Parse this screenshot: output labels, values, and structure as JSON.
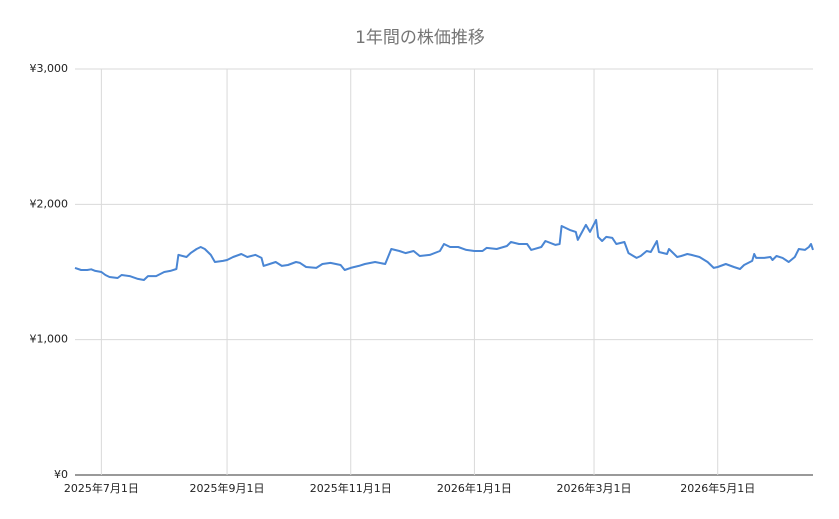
{
  "chart_data": {
    "type": "line",
    "title": "1年間の株価推移",
    "x": [
      "2025-06-18",
      "2025-06-21",
      "2025-06-24",
      "2025-06-26",
      "2025-06-28",
      "2025-07-01",
      "2025-07-03",
      "2025-07-05",
      "2025-07-09",
      "2025-07-11",
      "2025-07-15",
      "2025-07-19",
      "2025-07-22",
      "2025-07-24",
      "2025-07-28",
      "2025-08-01",
      "2025-08-04",
      "2025-08-07",
      "2025-08-08",
      "2025-08-12",
      "2025-08-14",
      "2025-08-17",
      "2025-08-19",
      "2025-08-21",
      "2025-08-24",
      "2025-08-26",
      "2025-08-30",
      "2025-09-01",
      "2025-09-04",
      "2025-09-08",
      "2025-09-11",
      "2025-09-15",
      "2025-09-18",
      "2025-09-19",
      "2025-09-22",
      "2025-09-25",
      "2025-09-28",
      "2025-10-01",
      "2025-10-05",
      "2025-10-07",
      "2025-10-10",
      "2025-10-15",
      "2025-10-18",
      "2025-10-22",
      "2025-10-27",
      "2025-10-29",
      "2025-11-01",
      "2025-11-05",
      "2025-11-08",
      "2025-11-13",
      "2025-11-18",
      "2025-11-21",
      "2025-11-25",
      "2025-11-28",
      "2025-12-02",
      "2025-12-05",
      "2025-12-10",
      "2025-12-15",
      "2025-12-17",
      "2025-12-20",
      "2025-12-24",
      "2025-12-28",
      "2026-01-01",
      "2026-01-05",
      "2026-01-07",
      "2026-01-12",
      "2026-01-17",
      "2026-01-19",
      "2026-01-23",
      "2026-01-27",
      "2026-01-29",
      "2026-02-03",
      "2026-02-05",
      "2026-02-10",
      "2026-02-12",
      "2026-02-13",
      "2026-02-17",
      "2026-02-20",
      "2026-02-21",
      "2026-02-25",
      "2026-02-27",
      "2026-03-02",
      "2026-03-03",
      "2026-03-05",
      "2026-03-07",
      "2026-03-10",
      "2026-03-12",
      "2026-03-16",
      "2026-03-18",
      "2026-03-22",
      "2026-03-24",
      "2026-03-27",
      "2026-03-29",
      "2026-04-01",
      "2026-04-02",
      "2026-04-06",
      "2026-04-07",
      "2026-04-11",
      "2026-04-13",
      "2026-04-16",
      "2026-04-18",
      "2026-04-22",
      "2026-04-26",
      "2026-04-29",
      "2026-05-01",
      "2026-05-05",
      "2026-05-09",
      "2026-05-12",
      "2026-05-14",
      "2026-05-18",
      "2026-05-19",
      "2026-05-20",
      "2026-05-24",
      "2026-05-27",
      "2026-05-28",
      "2026-05-30",
      "2026-06-02",
      "2026-06-05",
      "2026-06-08",
      "2026-06-10",
      "2026-06-13",
      "2026-06-15",
      "2026-06-16",
      "2026-06-17"
    ],
    "series": [
      {
        "color": "#4a86d4",
        "values": [
          1530,
          1515,
          1515,
          1520,
          1508,
          1500,
          1478,
          1463,
          1456,
          1478,
          1470,
          1449,
          1441,
          1470,
          1470,
          1500,
          1508,
          1522,
          1626,
          1611,
          1640,
          1670,
          1685,
          1670,
          1626,
          1574,
          1582,
          1589,
          1611,
          1633,
          1611,
          1626,
          1604,
          1545,
          1559,
          1574,
          1545,
          1552,
          1574,
          1567,
          1537,
          1530,
          1559,
          1567,
          1552,
          1515,
          1530,
          1545,
          1559,
          1574,
          1559,
          1670,
          1655,
          1640,
          1655,
          1618,
          1626,
          1655,
          1707,
          1685,
          1685,
          1663,
          1655,
          1655,
          1678,
          1670,
          1692,
          1722,
          1707,
          1707,
          1663,
          1685,
          1729,
          1700,
          1707,
          1840,
          1811,
          1796,
          1737,
          1848,
          1796,
          1885,
          1759,
          1729,
          1759,
          1752,
          1707,
          1722,
          1640,
          1604,
          1618,
          1655,
          1648,
          1729,
          1648,
          1633,
          1670,
          1611,
          1618,
          1633,
          1626,
          1611,
          1574,
          1530,
          1537,
          1559,
          1537,
          1522,
          1552,
          1582,
          1633,
          1604,
          1604,
          1611,
          1589,
          1618,
          1604,
          1574,
          1611,
          1670,
          1663,
          1685,
          1707,
          1663
        ]
      }
    ],
    "xlim": [
      "2025-06-18",
      "2026-06-17"
    ],
    "xticks": [
      {
        "value": "2025-07-01",
        "label": "2025年7月1日"
      },
      {
        "value": "2025-09-01",
        "label": "2025年9月1日"
      },
      {
        "value": "2025-11-01",
        "label": "2025年11月1日"
      },
      {
        "value": "2026-01-01",
        "label": "2026年1月1日"
      },
      {
        "value": "2026-03-01",
        "label": "2026年3月1日"
      },
      {
        "value": "2026-05-01",
        "label": "2026年5月1日"
      }
    ],
    "ylim": [
      0,
      3000
    ],
    "yticks": [
      {
        "value": 0,
        "label": "¥0"
      },
      {
        "value": 1000,
        "label": "¥1,000"
      },
      {
        "value": 2000,
        "label": "¥2,000"
      },
      {
        "value": 3000,
        "label": "¥3,000"
      }
    ],
    "grid": true
  }
}
